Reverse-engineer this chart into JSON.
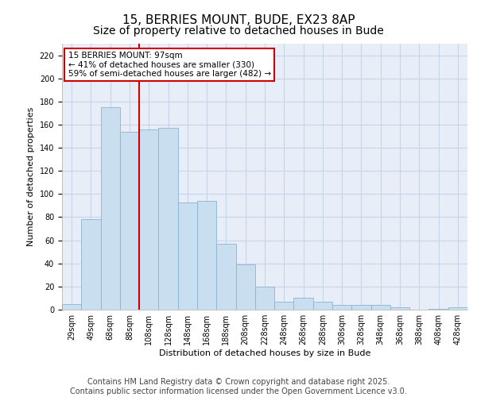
{
  "title_line1": "15, BERRIES MOUNT, BUDE, EX23 8AP",
  "title_line2": "Size of property relative to detached houses in Bude",
  "xlabel": "Distribution of detached houses by size in Bude",
  "ylabel": "Number of detached properties",
  "categories": [
    "29sqm",
    "49sqm",
    "68sqm",
    "88sqm",
    "108sqm",
    "128sqm",
    "148sqm",
    "168sqm",
    "188sqm",
    "208sqm",
    "228sqm",
    "248sqm",
    "268sqm",
    "288sqm",
    "308sqm",
    "328sqm",
    "348sqm",
    "368sqm",
    "388sqm",
    "408sqm",
    "428sqm"
  ],
  "values": [
    5,
    78,
    175,
    154,
    156,
    157,
    93,
    94,
    57,
    39,
    20,
    7,
    10,
    7,
    4,
    4,
    4,
    2,
    0,
    1,
    2
  ],
  "bar_color": "#c9dff0",
  "bar_edge_color": "#8ab4d4",
  "grid_color": "#c8d4e8",
  "background_color": "#e8eef8",
  "annotation_box_text": "15 BERRIES MOUNT: 97sqm\n← 41% of detached houses are smaller (330)\n59% of semi-detached houses are larger (482) →",
  "annotation_box_color": "#cc0000",
  "vline_x_index": 3,
  "vline_color": "#cc0000",
  "ylim": [
    0,
    230
  ],
  "yticks": [
    0,
    20,
    40,
    60,
    80,
    100,
    120,
    140,
    160,
    180,
    200,
    220
  ],
  "footer_text": "Contains HM Land Registry data © Crown copyright and database right 2025.\nContains public sector information licensed under the Open Government Licence v3.0.",
  "title_fontsize": 11,
  "subtitle_fontsize": 10,
  "label_fontsize": 8,
  "tick_fontsize": 7,
  "footer_fontsize": 7
}
